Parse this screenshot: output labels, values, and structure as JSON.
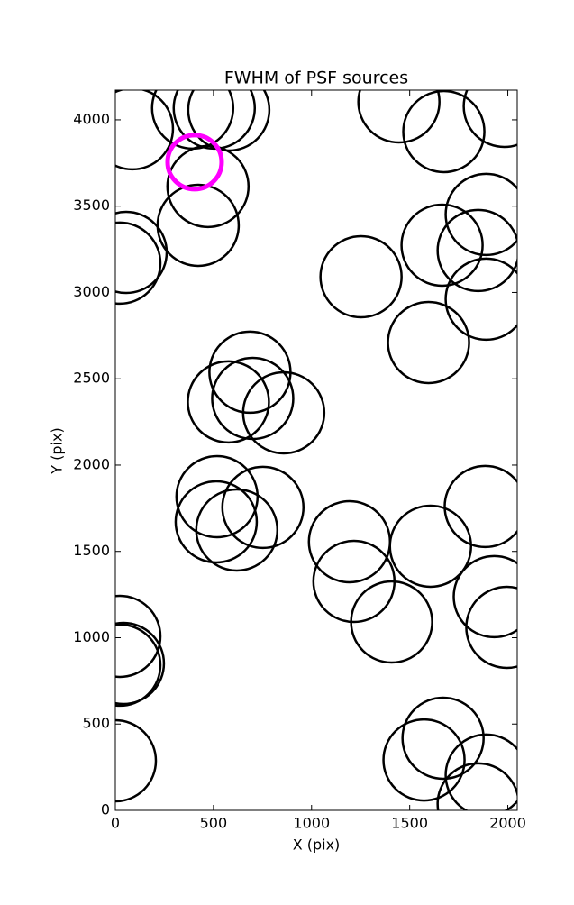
{
  "chart_data": {
    "type": "scatter",
    "title": "FWHM of PSF sources",
    "xlabel": "X (pix)",
    "ylabel": "Y (pix)",
    "xlim": [
      0,
      2048
    ],
    "ylim": [
      0,
      4172
    ],
    "xticks": [
      0,
      500,
      1000,
      1500,
      2000
    ],
    "yticks": [
      0,
      500,
      1000,
      1500,
      2000,
      2500,
      3000,
      3500,
      4000
    ],
    "series": [
      {
        "color": "#000000",
        "x": [
          87,
          394,
          504,
          578,
          472,
          422,
          55,
          23,
          1445,
          1674,
          1982,
          1890,
          1665,
          1849,
          1890,
          1252,
          1596,
          686,
          576,
          700,
          858,
          518,
          752,
          514,
          619,
          1193,
          1216,
          1606,
          1408,
          1885,
          1931,
          1995,
          23,
          41,
          23,
          0,
          1670,
          1573,
          1890,
          1849
        ],
        "values": [
          3948,
          4068,
          4068,
          4057,
          3614,
          3389,
          3232,
          3170,
          4104,
          3932,
          4078,
          3452,
          3274,
          3243,
          2961,
          3091,
          2710,
          2538,
          2366,
          2386,
          2303,
          1817,
          1755,
          1671,
          1624,
          1556,
          1326,
          1530,
          1091,
          1760,
          1238,
          1060,
          1008,
          851,
          841,
          287,
          418,
          292,
          204,
          37
        ]
      },
      {
        "color": "#ff00ff",
        "x": [
          404
        ],
        "values": [
          3755
        ]
      }
    ]
  }
}
